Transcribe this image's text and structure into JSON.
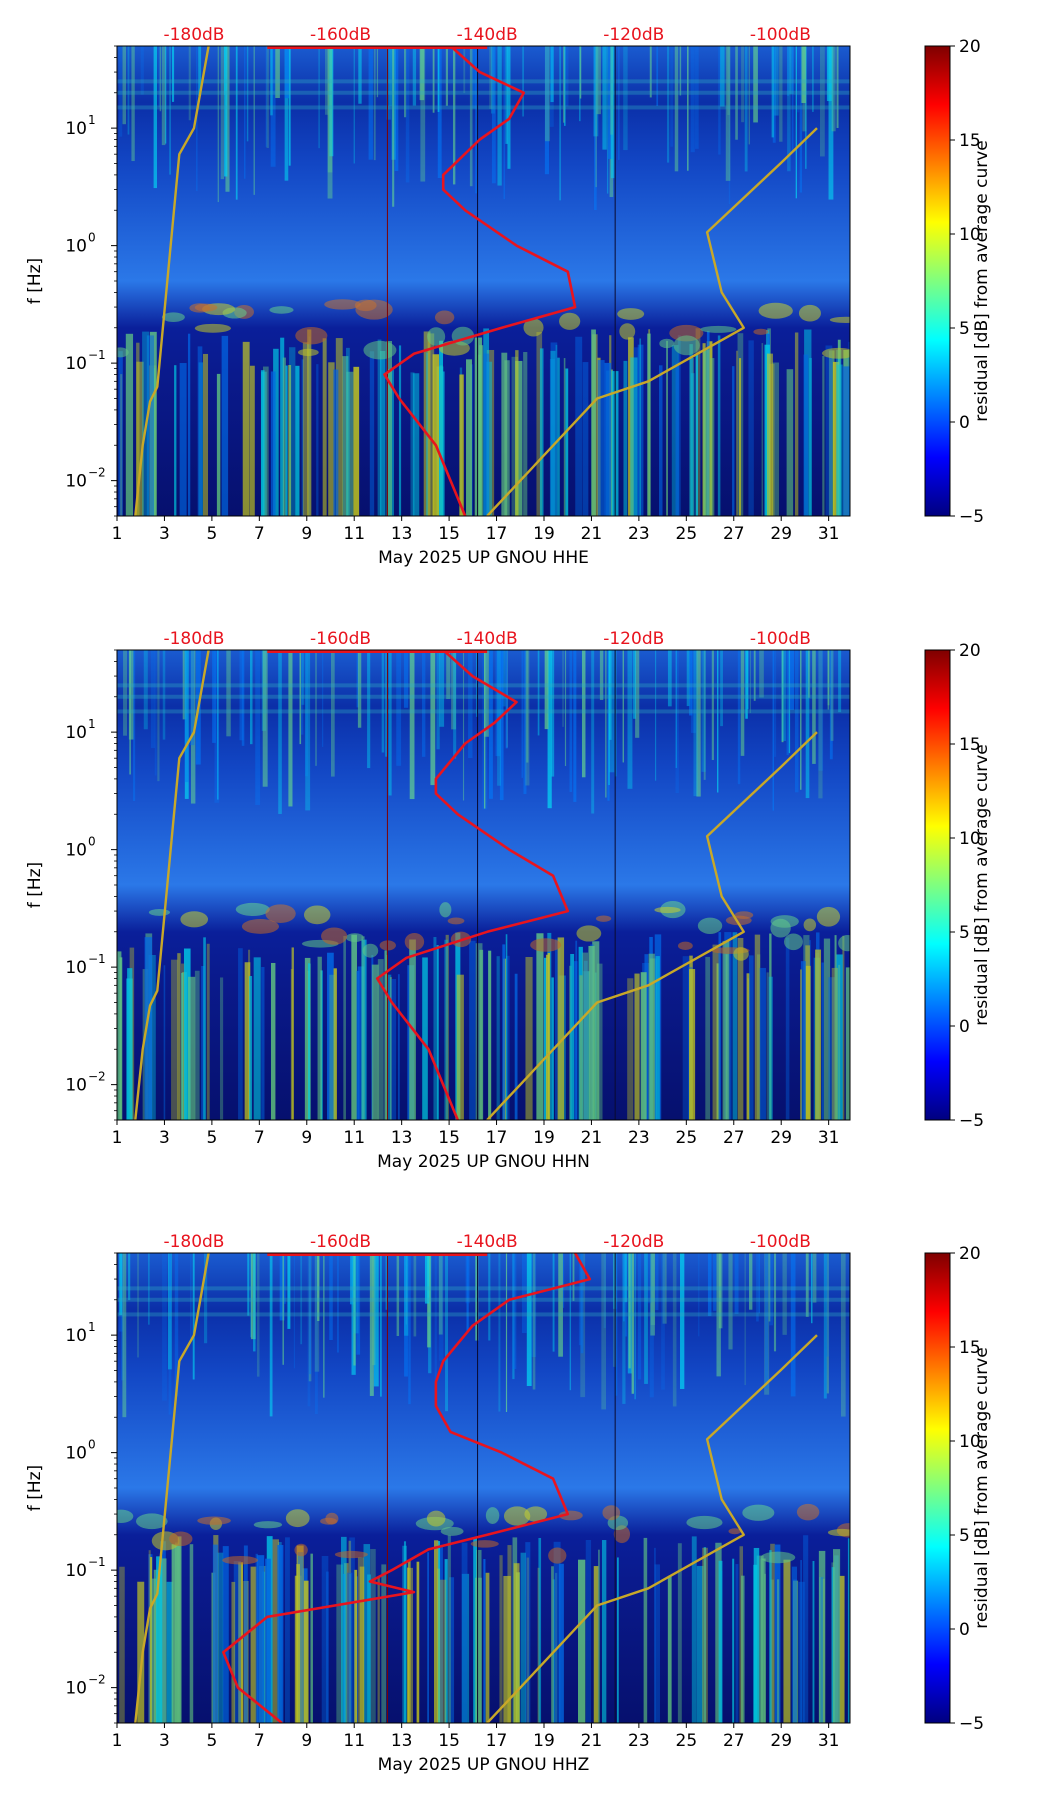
{
  "colors": {
    "psd_curve": "#e8141e",
    "noise_model": "#c8a828",
    "top_axis_text": "#e8141e",
    "colormap": [
      "#00007f",
      "#0000ff",
      "#007fff",
      "#00ffff",
      "#7fff7f",
      "#ffff00",
      "#ff7f00",
      "#ff0000",
      "#7f0000"
    ]
  },
  "chart_data": [
    {
      "type": "heatmap",
      "xlabel": "May 2025 UP GNOU  HHE",
      "ylabel": "f [Hz]",
      "x_ticks": [
        "1",
        "3",
        "5",
        "7",
        "9",
        "11",
        "13",
        "15",
        "17",
        "19",
        "21",
        "23",
        "25",
        "27",
        "29",
        "31"
      ],
      "x_range": [
        1,
        31.9
      ],
      "y_scale": "log",
      "y_range": [
        0.005,
        50
      ],
      "y_ticks": [
        {
          "value": 0.01,
          "mant": "10",
          "exp": "−2"
        },
        {
          "value": 0.1,
          "mant": "10",
          "exp": "−1"
        },
        {
          "value": 1,
          "mant": "10",
          "exp": "0"
        },
        {
          "value": 10,
          "mant": "10",
          "exp": "1"
        }
      ],
      "top_ticks": [
        "-180dB",
        "-160dB",
        "-140dB",
        "-120dB",
        "-100dB"
      ],
      "top_ticks_db": [
        -180,
        -160,
        -140,
        -120,
        -100
      ],
      "db_range": [
        -190.5,
        -90.5
      ],
      "colorbar": {
        "label": "residual [dB] from average curve",
        "range": [
          -5,
          20
        ],
        "ticks": [
          "20",
          "15",
          "10",
          "5",
          "0",
          "−5"
        ]
      },
      "series": [
        {
          "role": "noise-model-low",
          "points": [
            [
              -178,
              50
            ],
            [
              -180,
              10
            ],
            [
              -182,
              6
            ],
            [
              -185,
              0.063
            ],
            [
              -186,
              0.047
            ],
            [
              -187,
              0.02
            ],
            [
              -188,
              0.005
            ]
          ]
        },
        {
          "role": "noise-model-high",
          "points": [
            [
              -95,
              10
            ],
            [
              -100,
              5
            ],
            [
              -110,
              1.3
            ],
            [
              -108,
              0.4
            ],
            [
              -105,
              0.2
            ],
            [
              -118,
              0.07
            ],
            [
              -125,
              0.05
            ],
            [
              -140,
              0.005
            ]
          ]
        },
        {
          "role": "psd-average",
          "points": [
            [
              -145,
              50
            ],
            [
              -141,
              30
            ],
            [
              -135,
              20
            ],
            [
              -137,
              12
            ],
            [
              -141,
              8
            ],
            [
              -146,
              4
            ],
            [
              -146,
              3
            ],
            [
              -143,
              2
            ],
            [
              -136,
              1
            ],
            [
              -129,
              0.6
            ],
            [
              -128,
              0.3
            ],
            [
              -138,
              0.2
            ],
            [
              -150,
              0.12
            ],
            [
              -154,
              0.08
            ],
            [
              -152,
              0.05
            ],
            [
              -147,
              0.02
            ],
            [
              -143,
              0.005
            ]
          ]
        }
      ]
    },
    {
      "type": "heatmap",
      "xlabel": "May 2025 UP GNOU  HHN",
      "ylabel": "f [Hz]",
      "x_ticks": [
        "1",
        "3",
        "5",
        "7",
        "9",
        "11",
        "13",
        "15",
        "17",
        "19",
        "21",
        "23",
        "25",
        "27",
        "29",
        "31"
      ],
      "x_range": [
        1,
        31.9
      ],
      "y_scale": "log",
      "y_range": [
        0.005,
        50
      ],
      "y_ticks": [
        {
          "value": 0.01,
          "mant": "10",
          "exp": "−2"
        },
        {
          "value": 0.1,
          "mant": "10",
          "exp": "−1"
        },
        {
          "value": 1,
          "mant": "10",
          "exp": "0"
        },
        {
          "value": 10,
          "mant": "10",
          "exp": "1"
        }
      ],
      "top_ticks": [
        "-180dB",
        "-160dB",
        "-140dB",
        "-120dB",
        "-100dB"
      ],
      "top_ticks_db": [
        -180,
        -160,
        -140,
        -120,
        -100
      ],
      "db_range": [
        -190.5,
        -90.5
      ],
      "colorbar": {
        "label": "residual [dB] from average curve",
        "range": [
          -5,
          20
        ],
        "ticks": [
          "20",
          "15",
          "10",
          "5",
          "0",
          "−5"
        ]
      },
      "series": [
        {
          "role": "noise-model-low",
          "points": [
            [
              -178,
              50
            ],
            [
              -180,
              10
            ],
            [
              -182,
              6
            ],
            [
              -185,
              0.063
            ],
            [
              -186,
              0.047
            ],
            [
              -187,
              0.02
            ],
            [
              -188,
              0.005
            ]
          ]
        },
        {
          "role": "noise-model-high",
          "points": [
            [
              -95,
              10
            ],
            [
              -100,
              5
            ],
            [
              -110,
              1.3
            ],
            [
              -108,
              0.4
            ],
            [
              -105,
              0.2
            ],
            [
              -118,
              0.07
            ],
            [
              -125,
              0.05
            ],
            [
              -140,
              0.005
            ]
          ]
        },
        {
          "role": "psd-average",
          "points": [
            [
              -146,
              50
            ],
            [
              -142,
              30
            ],
            [
              -136,
              18
            ],
            [
              -139,
              12
            ],
            [
              -143,
              8
            ],
            [
              -147,
              4
            ],
            [
              -147,
              3
            ],
            [
              -144,
              2
            ],
            [
              -137,
              1
            ],
            [
              -131,
              0.6
            ],
            [
              -129,
              0.3
            ],
            [
              -140,
              0.2
            ],
            [
              -151,
              0.12
            ],
            [
              -155,
              0.08
            ],
            [
              -153,
              0.05
            ],
            [
              -148,
              0.02
            ],
            [
              -144,
              0.005
            ]
          ]
        }
      ]
    },
    {
      "type": "heatmap",
      "xlabel": "May 2025 UP GNOU  HHZ",
      "ylabel": "f [Hz]",
      "x_ticks": [
        "1",
        "3",
        "5",
        "7",
        "9",
        "11",
        "13",
        "15",
        "17",
        "19",
        "21",
        "23",
        "25",
        "27",
        "29",
        "31"
      ],
      "x_range": [
        1,
        31.9
      ],
      "y_scale": "log",
      "y_range": [
        0.005,
        50
      ],
      "y_ticks": [
        {
          "value": 0.01,
          "mant": "10",
          "exp": "−2"
        },
        {
          "value": 0.1,
          "mant": "10",
          "exp": "−1"
        },
        {
          "value": 1,
          "mant": "10",
          "exp": "0"
        },
        {
          "value": 10,
          "mant": "10",
          "exp": "1"
        }
      ],
      "top_ticks": [
        "-180dB",
        "-160dB",
        "-140dB",
        "-120dB",
        "-100dB"
      ],
      "top_ticks_db": [
        -180,
        -160,
        -140,
        -120,
        -100
      ],
      "db_range": [
        -190.5,
        -90.5
      ],
      "colorbar": {
        "label": "residual [dB] from average curve",
        "range": [
          -5,
          20
        ],
        "ticks": [
          "20",
          "15",
          "10",
          "5",
          "0",
          "−5"
        ]
      },
      "series": [
        {
          "role": "noise-model-low",
          "points": [
            [
              -178,
              50
            ],
            [
              -180,
              10
            ],
            [
              -182,
              6
            ],
            [
              -185,
              0.063
            ],
            [
              -186,
              0.047
            ],
            [
              -187,
              0.02
            ],
            [
              -188,
              0.005
            ]
          ]
        },
        {
          "role": "noise-model-high",
          "points": [
            [
              -95,
              10
            ],
            [
              -100,
              5
            ],
            [
              -110,
              1.3
            ],
            [
              -108,
              0.4
            ],
            [
              -105,
              0.2
            ],
            [
              -118,
              0.07
            ],
            [
              -125,
              0.05
            ],
            [
              -140,
              0.005
            ]
          ]
        },
        {
          "role": "psd-average",
          "points": [
            [
              -128,
              50
            ],
            [
              -126,
              30
            ],
            [
              -137,
              20
            ],
            [
              -142,
              12
            ],
            [
              -146,
              6
            ],
            [
              -147,
              4
            ],
            [
              -147,
              2.5
            ],
            [
              -145,
              1.5
            ],
            [
              -138,
              1
            ],
            [
              -131,
              0.6
            ],
            [
              -129,
              0.3
            ],
            [
              -140,
              0.2
            ],
            [
              -148,
              0.15
            ],
            [
              -153,
              0.1
            ],
            [
              -156,
              0.08
            ],
            [
              -150,
              0.065
            ],
            [
              -170,
              0.04
            ],
            [
              -176,
              0.02
            ],
            [
              -174,
              0.01
            ],
            [
              -168,
              0.005
            ]
          ]
        }
      ]
    }
  ]
}
